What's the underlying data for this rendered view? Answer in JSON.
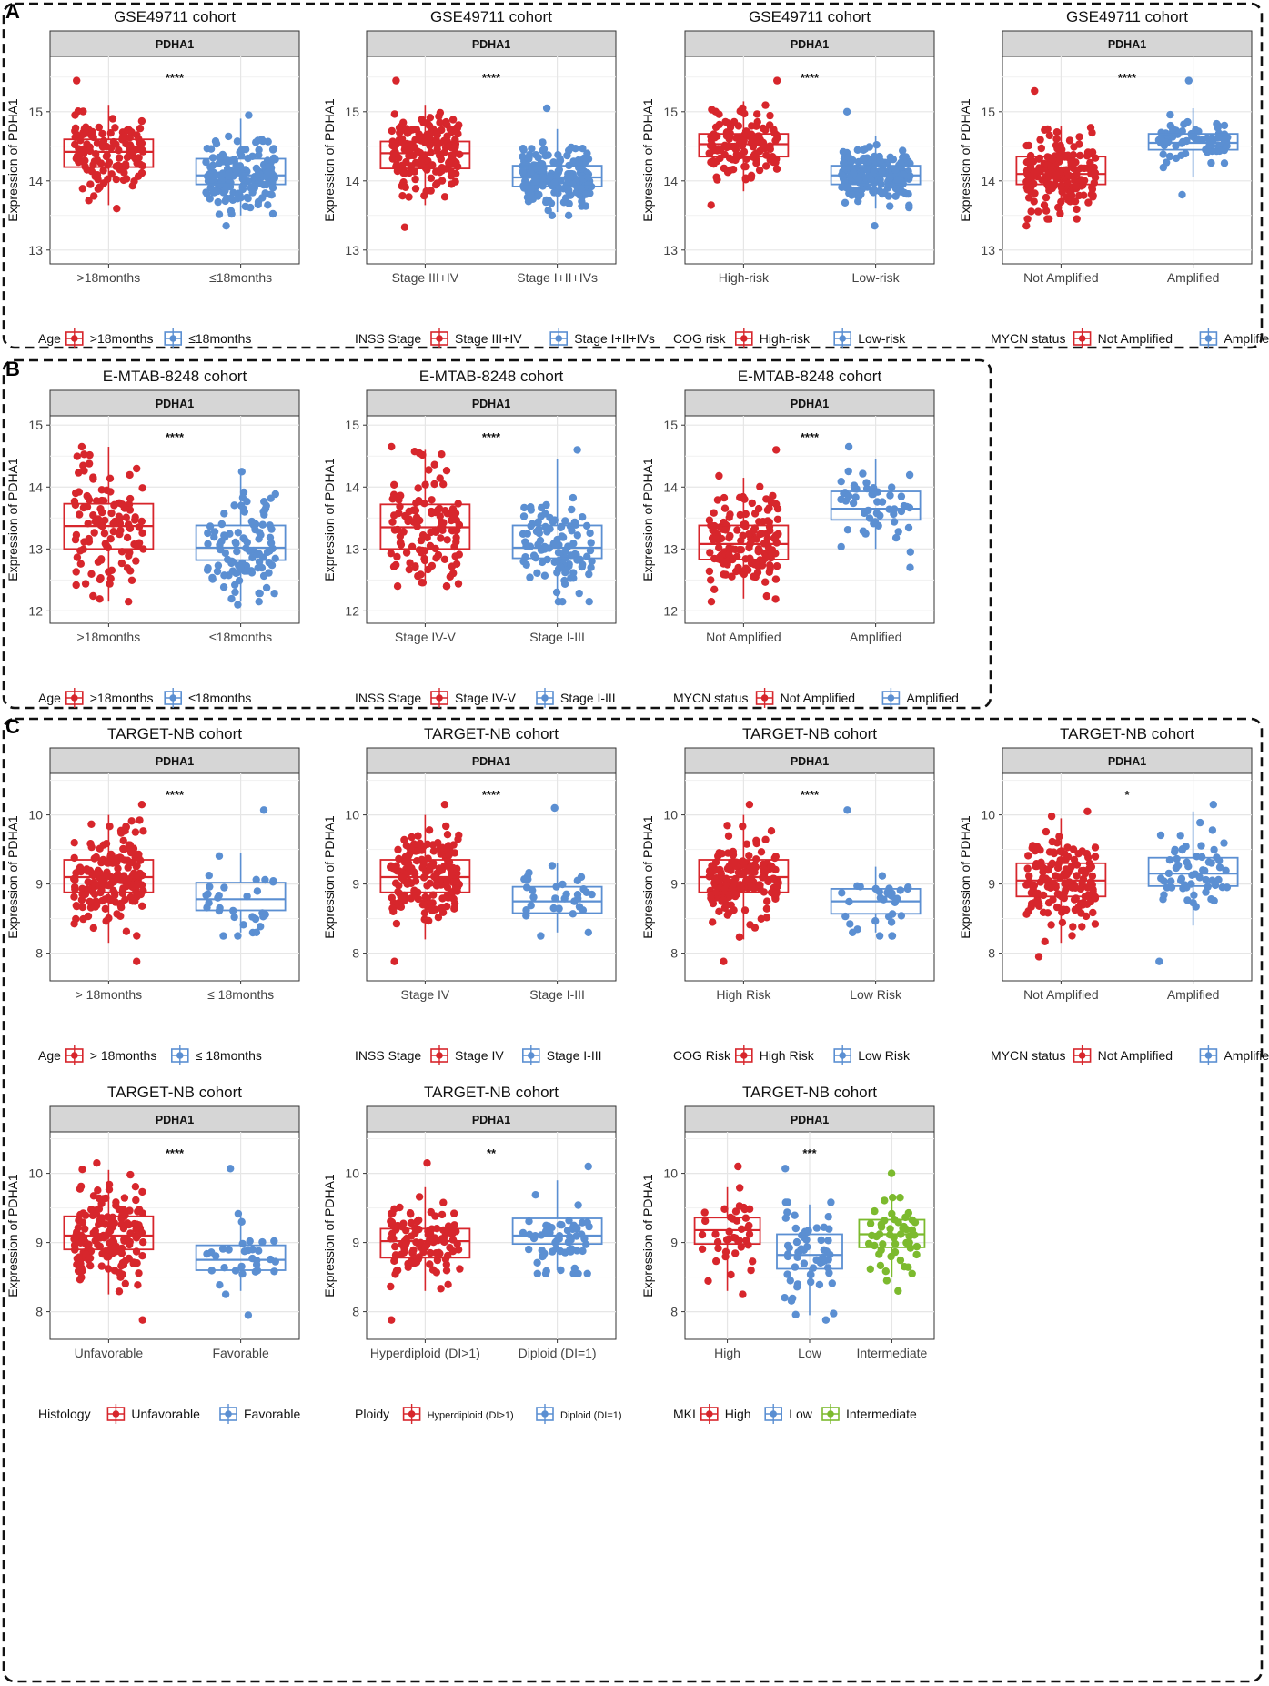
{
  "colors": {
    "red": "#d7262c",
    "blue": "#5b8fd2",
    "green": "#7cba2e",
    "grid": "#e6e6e6",
    "strip": "#d6d6d6"
  },
  "panels": [
    {
      "letter": "A"
    },
    {
      "letter": "B"
    },
    {
      "letter": "C"
    }
  ],
  "common": {
    "strip_label": "PDHA1",
    "ylabel": "Expression of PDHA1"
  },
  "chart_data": [
    {
      "type": "box",
      "panel": "A",
      "title": "GSE49711 cohort",
      "ylim": [
        12.8,
        15.8
      ],
      "yticks": [
        13,
        14,
        15
      ],
      "significance": "****",
      "categories": [
        "Age",
        ">18months",
        "≤18months"
      ],
      "groups": [
        {
          "label": ">18months",
          "color": "red",
          "q1": 14.2,
          "median": 14.42,
          "q3": 14.6,
          "wlo": 13.65,
          "whi": 15.1,
          "n": 120,
          "min": 13.6,
          "max": 15.45
        },
        {
          "label": "≤18months",
          "color": "blue",
          "q1": 13.95,
          "median": 14.08,
          "q3": 14.32,
          "wlo": 13.5,
          "whi": 14.9,
          "n": 160,
          "min": 13.35,
          "max": 14.95
        }
      ],
      "legend": {
        "title": "Age",
        "items": [
          ">18months",
          "≤18months"
        ]
      }
    },
    {
      "type": "box",
      "panel": "A",
      "title": "GSE49711 cohort",
      "ylim": [
        12.8,
        15.8
      ],
      "yticks": [
        13,
        14,
        15
      ],
      "significance": "****",
      "groups": [
        {
          "label": "Stage III+IV",
          "color": "red",
          "q1": 14.18,
          "median": 14.4,
          "q3": 14.57,
          "wlo": 13.65,
          "whi": 15.1,
          "n": 160,
          "min": 13.33,
          "max": 15.45
        },
        {
          "label": "Stage I+II+IVs",
          "color": "blue",
          "q1": 13.92,
          "median": 14.05,
          "q3": 14.22,
          "wlo": 13.55,
          "whi": 14.75,
          "n": 190,
          "min": 13.5,
          "max": 15.05
        }
      ],
      "legend": {
        "title": "INSS Stage",
        "items": [
          "Stage III+IV",
          "Stage I+II+IVs"
        ]
      }
    },
    {
      "type": "box",
      "panel": "A",
      "title": "GSE49711 cohort",
      "ylim": [
        12.8,
        15.8
      ],
      "yticks": [
        13,
        14,
        15
      ],
      "significance": "****",
      "groups": [
        {
          "label": "High-risk",
          "color": "red",
          "q1": 14.35,
          "median": 14.53,
          "q3": 14.68,
          "wlo": 13.85,
          "whi": 15.15,
          "n": 130,
          "min": 13.65,
          "max": 15.45
        },
        {
          "label": "Low-risk",
          "color": "blue",
          "q1": 13.95,
          "median": 14.08,
          "q3": 14.22,
          "wlo": 13.6,
          "whi": 14.65,
          "n": 200,
          "min": 13.35,
          "max": 15.0
        }
      ],
      "legend": {
        "title": "COG risk",
        "items": [
          "High-risk",
          "Low-risk"
        ]
      }
    },
    {
      "type": "box",
      "panel": "A",
      "title": "GSE49711 cohort",
      "ylim": [
        12.8,
        15.8
      ],
      "yticks": [
        13,
        14,
        15
      ],
      "significance": "****",
      "groups": [
        {
          "label": "Not Amplified",
          "color": "red",
          "q1": 13.95,
          "median": 14.1,
          "q3": 14.35,
          "wlo": 13.5,
          "whi": 14.8,
          "n": 190,
          "min": 13.35,
          "max": 15.3
        },
        {
          "label": "Amplified",
          "color": "blue",
          "q1": 14.45,
          "median": 14.55,
          "q3": 14.68,
          "wlo": 14.05,
          "whi": 15.05,
          "n": 80,
          "min": 13.8,
          "max": 15.45
        }
      ],
      "legend": {
        "title": "MYCN status",
        "items": [
          "Not Amplified",
          "Amplified"
        ]
      }
    },
    {
      "type": "box",
      "panel": "B",
      "title": "E-MTAB-8248 cohort",
      "ylim": [
        11.8,
        15.15
      ],
      "yticks": [
        12,
        13,
        14,
        15
      ],
      "significance": "****",
      "groups": [
        {
          "label": ">18months",
          "color": "red",
          "q1": 13.0,
          "median": 13.37,
          "q3": 13.73,
          "wlo": 12.15,
          "whi": 14.65,
          "n": 110,
          "min": 12.15,
          "max": 14.65
        },
        {
          "label": "≤18months",
          "color": "blue",
          "q1": 12.82,
          "median": 13.02,
          "q3": 13.38,
          "wlo": 12.15,
          "whi": 14.25,
          "n": 100,
          "min": 12.15,
          "max": 14.25
        }
      ],
      "legend": {
        "title": "Age",
        "items": [
          ">18months",
          "≤18months"
        ]
      }
    },
    {
      "type": "box",
      "panel": "B",
      "title": "E-MTAB-8248 cohort",
      "ylim": [
        11.8,
        15.15
      ],
      "yticks": [
        12,
        13,
        14,
        15
      ],
      "significance": "****",
      "groups": [
        {
          "label": "Stage IV-V",
          "color": "red",
          "q1": 13.0,
          "median": 13.35,
          "q3": 13.72,
          "wlo": 12.45,
          "whi": 14.6,
          "n": 120,
          "min": 12.4,
          "max": 14.65
        },
        {
          "label": "Stage I-III",
          "color": "blue",
          "q1": 12.85,
          "median": 13.02,
          "q3": 13.38,
          "wlo": 12.2,
          "whi": 14.45,
          "n": 100,
          "min": 12.15,
          "max": 14.6
        }
      ],
      "legend": {
        "title": "INSS Stage",
        "items": [
          "Stage IV-V",
          "Stage I-III"
        ]
      }
    },
    {
      "type": "box",
      "panel": "B",
      "title": "E-MTAB-8248 cohort",
      "ylim": [
        11.8,
        15.15
      ],
      "yticks": [
        12,
        13,
        14,
        15
      ],
      "significance": "****",
      "groups": [
        {
          "label": "Not Amplified",
          "color": "red",
          "q1": 12.83,
          "median": 13.08,
          "q3": 13.38,
          "wlo": 12.2,
          "whi": 14.15,
          "n": 150,
          "min": 12.15,
          "max": 14.6
        },
        {
          "label": "Amplified",
          "color": "blue",
          "q1": 13.47,
          "median": 13.65,
          "q3": 13.93,
          "wlo": 13.0,
          "whi": 14.45,
          "n": 50,
          "min": 12.7,
          "max": 14.65
        }
      ],
      "legend": {
        "title": "MYCN status",
        "items": [
          "Not Amplified",
          "Amplified"
        ]
      }
    },
    {
      "type": "box",
      "panel": "C",
      "title": "TARGET-NB cohort",
      "ylim": [
        7.6,
        10.6
      ],
      "yticks": [
        8,
        9,
        10
      ],
      "significance": "****",
      "groups": [
        {
          "label": "> 18months",
          "color": "red",
          "q1": 8.88,
          "median": 9.1,
          "q3": 9.35,
          "wlo": 8.15,
          "whi": 10.0,
          "n": 170,
          "min": 7.88,
          "max": 10.15
        },
        {
          "label": "≤ 18months",
          "color": "blue",
          "q1": 8.62,
          "median": 8.78,
          "q3": 9.02,
          "wlo": 8.3,
          "whi": 9.45,
          "n": 30,
          "min": 8.3,
          "max": 10.07
        }
      ],
      "legend": {
        "title": "Age",
        "items": [
          "> 18months",
          "≤ 18months"
        ]
      }
    },
    {
      "type": "box",
      "panel": "C",
      "title": "TARGET-NB cohort",
      "ylim": [
        7.6,
        10.6
      ],
      "yticks": [
        8,
        9,
        10
      ],
      "significance": "****",
      "groups": [
        {
          "label": "Stage IV",
          "color": "red",
          "q1": 8.88,
          "median": 9.1,
          "q3": 9.35,
          "wlo": 8.2,
          "whi": 10.0,
          "n": 170,
          "min": 7.88,
          "max": 10.15
        },
        {
          "label": "Stage I-III",
          "color": "blue",
          "q1": 8.58,
          "median": 8.75,
          "q3": 8.96,
          "wlo": 8.3,
          "whi": 9.3,
          "n": 30,
          "min": 8.3,
          "max": 10.1
        }
      ],
      "legend": {
        "title": "INSS Stage",
        "items": [
          "Stage IV",
          "Stage I-III"
        ]
      }
    },
    {
      "type": "box",
      "panel": "C",
      "title": "TARGET-NB cohort",
      "ylim": [
        7.6,
        10.6
      ],
      "yticks": [
        8,
        9,
        10
      ],
      "significance": "****",
      "groups": [
        {
          "label": "High Risk",
          "color": "red",
          "q1": 8.88,
          "median": 9.1,
          "q3": 9.35,
          "wlo": 8.2,
          "whi": 10.0,
          "n": 170,
          "min": 7.88,
          "max": 10.15
        },
        {
          "label": "Low Risk",
          "color": "blue",
          "q1": 8.57,
          "median": 8.75,
          "q3": 8.93,
          "wlo": 8.3,
          "whi": 9.25,
          "n": 30,
          "min": 8.3,
          "max": 10.07
        }
      ],
      "legend": {
        "title": "COG Risk",
        "items": [
          "High Risk",
          "Low Risk"
        ]
      }
    },
    {
      "type": "box",
      "panel": "C",
      "title": "TARGET-NB cohort",
      "ylim": [
        7.6,
        10.6
      ],
      "yticks": [
        8,
        9,
        10
      ],
      "significance": "*",
      "groups": [
        {
          "label": "Not Amplified",
          "color": "red",
          "q1": 8.82,
          "median": 9.05,
          "q3": 9.3,
          "wlo": 8.15,
          "whi": 9.95,
          "n": 150,
          "min": 7.95,
          "max": 10.05
        },
        {
          "label": "Amplified",
          "color": "blue",
          "q1": 8.97,
          "median": 9.15,
          "q3": 9.38,
          "wlo": 8.4,
          "whi": 10.05,
          "n": 60,
          "min": 7.88,
          "max": 10.15
        }
      ],
      "legend": {
        "title": "MYCN status",
        "items": [
          "Not Amplified",
          "Amplified"
        ]
      }
    },
    {
      "type": "box",
      "panel": "C",
      "title": "TARGET-NB cohort",
      "ylim": [
        7.6,
        10.6
      ],
      "yticks": [
        8,
        9,
        10
      ],
      "significance": "****",
      "groups": [
        {
          "label": "Unfavorable",
          "color": "red",
          "q1": 8.9,
          "median": 9.1,
          "q3": 9.38,
          "wlo": 8.25,
          "whi": 10.05,
          "n": 160,
          "min": 7.88,
          "max": 10.15
        },
        {
          "label": "Favorable",
          "color": "blue",
          "q1": 8.6,
          "median": 8.75,
          "q3": 8.96,
          "wlo": 8.3,
          "whi": 9.45,
          "n": 30,
          "min": 7.95,
          "max": 10.07
        }
      ],
      "legend": {
        "title": "Histology",
        "items": [
          "Unfavorable",
          "Favorable"
        ]
      }
    },
    {
      "type": "box",
      "panel": "C",
      "title": "TARGET-NB cohort",
      "ylim": [
        7.6,
        10.6
      ],
      "yticks": [
        8,
        9,
        10
      ],
      "significance": "**",
      "groups": [
        {
          "label": "Hyperdiploid (DI>1)",
          "color": "red",
          "q1": 8.78,
          "median": 9.02,
          "q3": 9.2,
          "wlo": 8.3,
          "whi": 9.8,
          "n": 110,
          "min": 7.88,
          "max": 10.15
        },
        {
          "label": "Diploid (DI=1)",
          "color": "blue",
          "q1": 8.98,
          "median": 9.1,
          "q3": 9.35,
          "wlo": 8.6,
          "whi": 9.9,
          "n": 60,
          "min": 8.6,
          "max": 10.1
        }
      ],
      "legend": {
        "title": "Ploidy",
        "items": [
          "Hyperdiploid (DI>1)",
          "Diploid (DI=1)"
        ],
        "small": true
      }
    },
    {
      "type": "box",
      "panel": "C",
      "title": "TARGET-NB cohort",
      "ylim": [
        7.6,
        10.6
      ],
      "yticks": [
        8,
        9,
        10
      ],
      "significance": "***",
      "sig_group": 1,
      "groups": [
        {
          "label": "High",
          "color": "red",
          "q1": 8.98,
          "median": 9.18,
          "q3": 9.36,
          "wlo": 8.3,
          "whi": 9.8,
          "n": 40,
          "min": 8.25,
          "max": 10.1
        },
        {
          "label": "Low",
          "color": "blue",
          "q1": 8.62,
          "median": 8.82,
          "q3": 9.12,
          "wlo": 7.95,
          "whi": 9.55,
          "n": 60,
          "min": 7.88,
          "max": 10.07
        },
        {
          "label": "Intermediate",
          "color": "green",
          "q1": 8.93,
          "median": 9.12,
          "q3": 9.33,
          "wlo": 8.5,
          "whi": 9.62,
          "n": 50,
          "min": 8.3,
          "max": 10.0
        }
      ],
      "legend": {
        "title": "MKI",
        "items": [
          "High",
          "Low",
          "Intermediate"
        ]
      }
    }
  ]
}
